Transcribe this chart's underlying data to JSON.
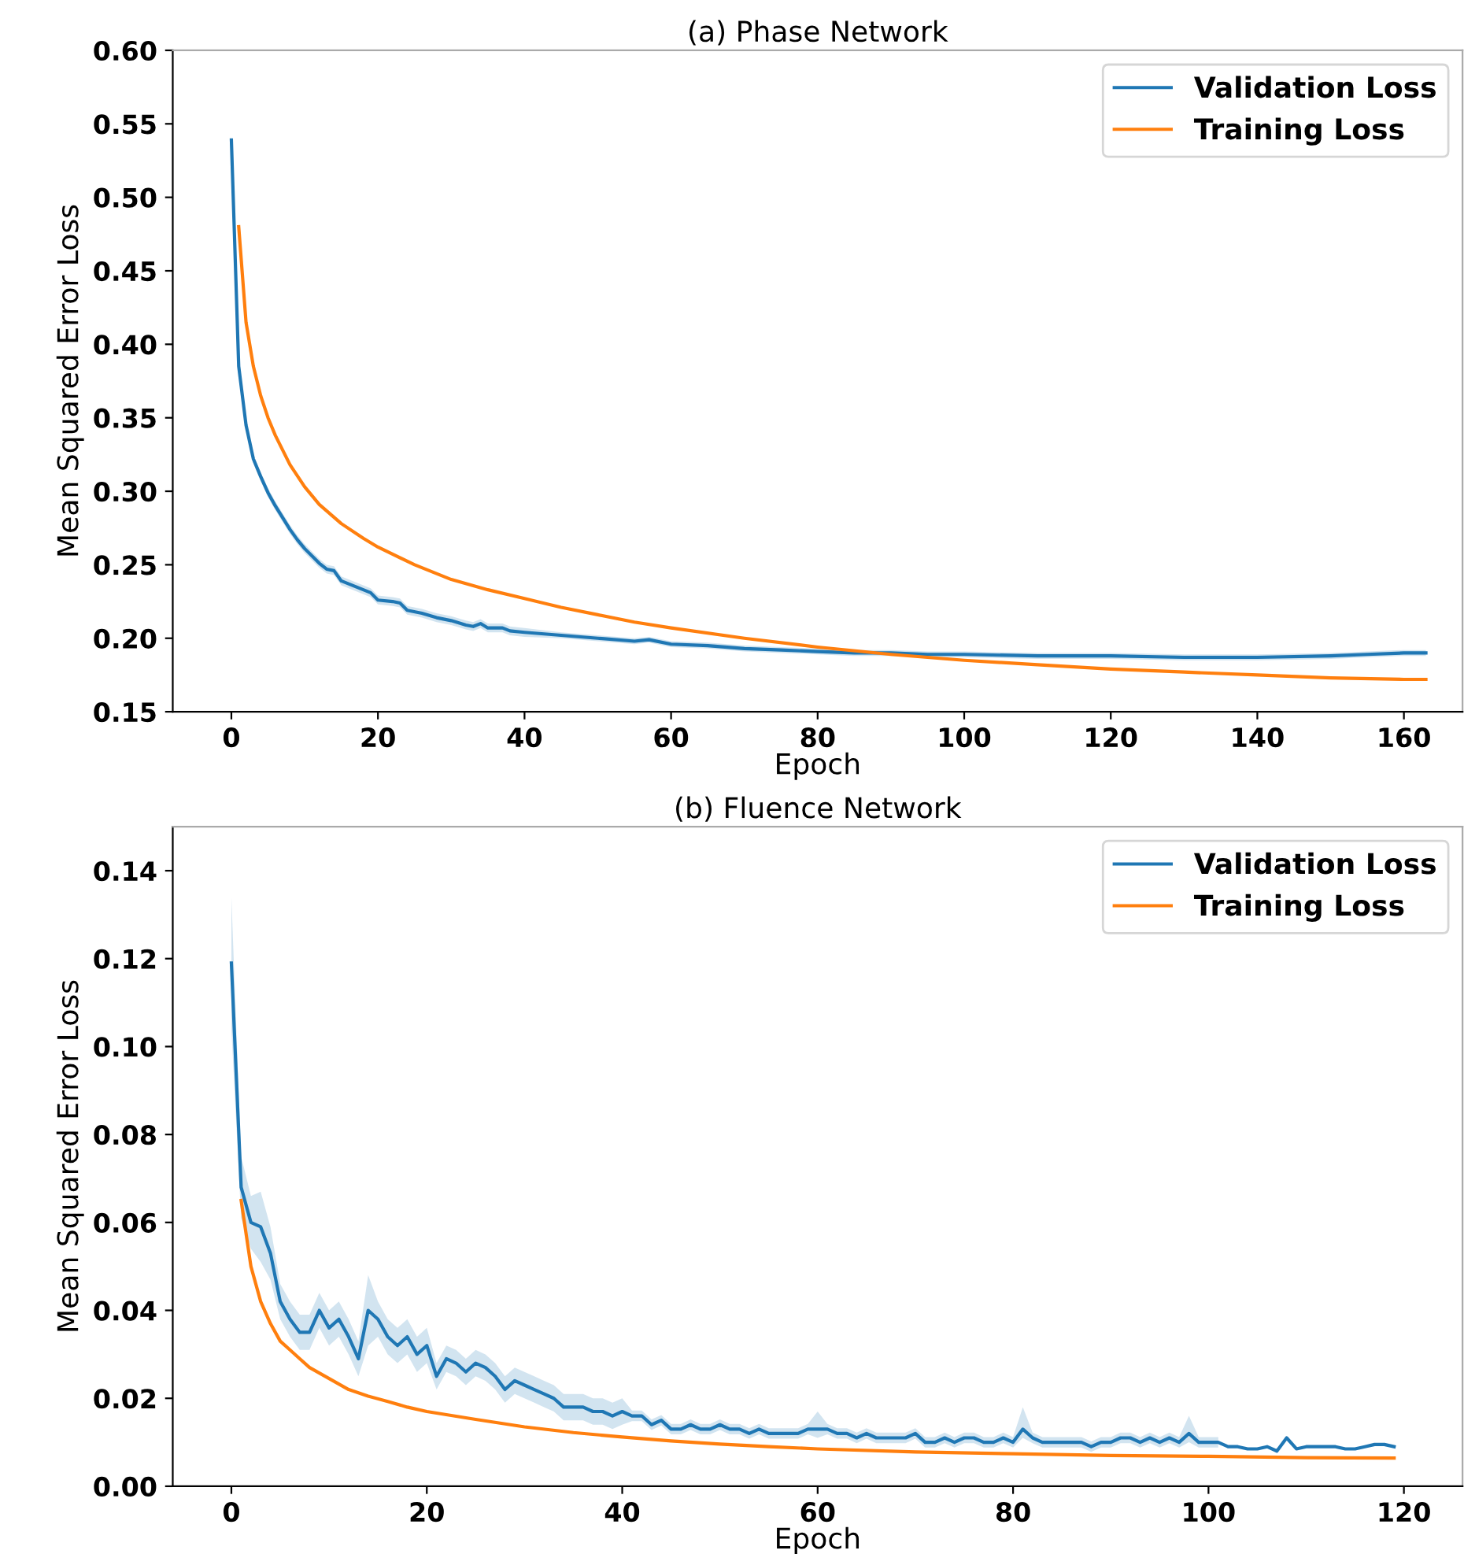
{
  "chart_data": [
    {
      "type": "line",
      "title": "(a) Phase Network",
      "xlabel": "Epoch",
      "ylabel": "Mean Squared Error Loss",
      "legend": "top right",
      "grid": false,
      "xlim": [
        -8,
        168
      ],
      "xticks": [
        0,
        20,
        40,
        60,
        80,
        100,
        120,
        140,
        160
      ],
      "ylim": [
        0.15,
        0.6
      ],
      "yticks": [
        {
          "value": 0.15,
          "label": "0.15"
        },
        {
          "value": 0.2,
          "label": "0.20"
        },
        {
          "value": 0.25,
          "label": "0.25"
        },
        {
          "value": 0.3,
          "label": "0.30"
        },
        {
          "value": 0.35,
          "label": "0.35"
        },
        {
          "value": 0.4,
          "label": "0.40"
        },
        {
          "value": 0.45,
          "label": "0.45"
        },
        {
          "value": 0.5,
          "label": "0.50"
        },
        {
          "value": 0.55,
          "label": "0.55"
        },
        {
          "value": 0.6,
          "label": "0.60"
        }
      ],
      "series": [
        {
          "name": "Validation Loss",
          "color": "#1f77b4",
          "x": [
            0,
            1,
            2,
            3,
            4,
            5,
            6,
            7,
            8,
            9,
            10,
            12,
            13,
            14,
            15,
            17,
            19,
            20,
            22,
            23,
            24,
            26,
            28,
            30,
            32,
            33,
            34,
            35,
            37,
            38,
            40,
            45,
            50,
            55,
            57,
            60,
            65,
            70,
            75,
            80,
            85,
            90,
            95,
            100,
            110,
            120,
            130,
            140,
            150,
            155,
            160,
            163
          ],
          "values": [
            0.539,
            0.385,
            0.345,
            0.322,
            0.31,
            0.299,
            0.29,
            0.282,
            0.274,
            0.267,
            0.261,
            0.251,
            0.247,
            0.246,
            0.239,
            0.235,
            0.231,
            0.226,
            0.225,
            0.224,
            0.219,
            0.217,
            0.214,
            0.212,
            0.209,
            0.208,
            0.21,
            0.207,
            0.207,
            0.205,
            0.204,
            0.202,
            0.2,
            0.198,
            0.199,
            0.196,
            0.195,
            0.193,
            0.192,
            0.191,
            0.19,
            0.19,
            0.189,
            0.189,
            0.188,
            0.188,
            0.187,
            0.187,
            0.188,
            0.189,
            0.19,
            0.19
          ],
          "lower": [
            0.536,
            0.382,
            0.342,
            0.319,
            0.307,
            0.296,
            0.287,
            0.279,
            0.271,
            0.264,
            0.258,
            0.248,
            0.244,
            0.243,
            0.236,
            0.232,
            0.228,
            0.223,
            0.222,
            0.221,
            0.216,
            0.214,
            0.211,
            0.209,
            0.206,
            0.205,
            0.207,
            0.204,
            0.204,
            0.202,
            0.201,
            0.2,
            0.198,
            0.196,
            0.197,
            0.194,
            0.193,
            0.191,
            0.19,
            0.189,
            0.188,
            0.188,
            0.187,
            0.187,
            0.186,
            0.186,
            0.185,
            0.185,
            0.186,
            0.187,
            0.188,
            0.188
          ],
          "upper": [
            0.542,
            0.388,
            0.348,
            0.325,
            0.313,
            0.302,
            0.293,
            0.285,
            0.277,
            0.27,
            0.264,
            0.254,
            0.25,
            0.249,
            0.242,
            0.238,
            0.234,
            0.229,
            0.228,
            0.227,
            0.222,
            0.22,
            0.217,
            0.215,
            0.212,
            0.211,
            0.213,
            0.21,
            0.21,
            0.208,
            0.207,
            0.204,
            0.202,
            0.2,
            0.201,
            0.198,
            0.197,
            0.195,
            0.194,
            0.193,
            0.192,
            0.192,
            0.191,
            0.191,
            0.19,
            0.19,
            0.189,
            0.189,
            0.19,
            0.191,
            0.192,
            0.192
          ]
        },
        {
          "name": "Training Loss",
          "color": "#ff7f0e",
          "x": [
            1,
            2,
            3,
            4,
            5,
            6,
            8,
            10,
            12,
            15,
            18,
            20,
            25,
            30,
            35,
            40,
            45,
            50,
            55,
            60,
            70,
            80,
            90,
            100,
            110,
            120,
            130,
            140,
            150,
            160,
            163
          ],
          "values": [
            0.48,
            0.415,
            0.385,
            0.365,
            0.35,
            0.338,
            0.318,
            0.303,
            0.291,
            0.278,
            0.268,
            0.262,
            0.25,
            0.24,
            0.233,
            0.227,
            0.221,
            0.216,
            0.211,
            0.207,
            0.2,
            0.194,
            0.189,
            0.185,
            0.182,
            0.179,
            0.177,
            0.175,
            0.173,
            0.172,
            0.172
          ]
        }
      ]
    },
    {
      "type": "line",
      "title": "(b) Fluence Network",
      "xlabel": "Epoch",
      "ylabel": "Mean Squared Error Loss",
      "legend": "top right",
      "grid": false,
      "xlim": [
        -6,
        126
      ],
      "xticks": [
        0,
        20,
        40,
        60,
        80,
        100,
        120
      ],
      "ylim": [
        0,
        0.15
      ],
      "yticks": [
        {
          "value": 0,
          "label": "0.00"
        },
        {
          "value": 0.02,
          "label": "0.02"
        },
        {
          "value": 0.04,
          "label": "0.04"
        },
        {
          "value": 0.06,
          "label": "0.06"
        },
        {
          "value": 0.08,
          "label": "0.08"
        },
        {
          "value": 0.1,
          "label": "0.10"
        },
        {
          "value": 0.12,
          "label": "0.12"
        },
        {
          "value": 0.14,
          "label": "0.14"
        }
      ],
      "series": [
        {
          "name": "Validation Loss",
          "color": "#1f77b4",
          "x": [
            0,
            1,
            2,
            3,
            4,
            5,
            6,
            7,
            8,
            9,
            10,
            11,
            12,
            13,
            14,
            15,
            16,
            17,
            18,
            19,
            20,
            21,
            22,
            23,
            24,
            25,
            26,
            27,
            28,
            29,
            30,
            31,
            32,
            33,
            34,
            35,
            36,
            37,
            38,
            39,
            40,
            41,
            42,
            43,
            44,
            45,
            46,
            47,
            48,
            49,
            50,
            51,
            52,
            53,
            54,
            55,
            56,
            57,
            58,
            59,
            60,
            61,
            62,
            63,
            64,
            65,
            66,
            67,
            68,
            69,
            70,
            71,
            72,
            73,
            74,
            75,
            76,
            77,
            78,
            79,
            80,
            81,
            82,
            83,
            84,
            85,
            86,
            87,
            88,
            89,
            90,
            91,
            92,
            93,
            94,
            95,
            96,
            97,
            98,
            99,
            100,
            101,
            102,
            103,
            104,
            105,
            106,
            107,
            108,
            109,
            110,
            111,
            112,
            113,
            114,
            115,
            116,
            117,
            118,
            119
          ],
          "values": [
            0.119,
            0.068,
            0.06,
            0.059,
            0.053,
            0.042,
            0.038,
            0.035,
            0.035,
            0.04,
            0.036,
            0.038,
            0.034,
            0.029,
            0.04,
            0.038,
            0.034,
            0.032,
            0.034,
            0.03,
            0.032,
            0.025,
            0.029,
            0.028,
            0.026,
            0.028,
            0.027,
            0.025,
            0.022,
            0.024,
            0.023,
            0.022,
            0.021,
            0.02,
            0.018,
            0.018,
            0.018,
            0.017,
            0.017,
            0.016,
            0.017,
            0.016,
            0.016,
            0.014,
            0.015,
            0.013,
            0.013,
            0.014,
            0.013,
            0.013,
            0.014,
            0.013,
            0.013,
            0.012,
            0.013,
            0.012,
            0.012,
            0.012,
            0.012,
            0.013,
            0.013,
            0.013,
            0.012,
            0.012,
            0.011,
            0.012,
            0.011,
            0.011,
            0.011,
            0.011,
            0.012,
            0.01,
            0.01,
            0.011,
            0.01,
            0.011,
            0.011,
            0.01,
            0.01,
            0.011,
            0.01,
            0.013,
            0.011,
            0.01,
            0.01,
            0.01,
            0.01,
            0.01,
            0.009,
            0.01,
            0.01,
            0.011,
            0.011,
            0.01,
            0.011,
            0.01,
            0.011,
            0.01,
            0.012,
            0.01,
            0.01,
            0.01,
            0.009,
            0.009,
            0.0085,
            0.0085,
            0.009,
            0.008,
            0.011,
            0.0085,
            0.009,
            0.009,
            0.009,
            0.009,
            0.0085,
            0.0085,
            0.009,
            0.0095,
            0.0095,
            0.009
          ],
          "lower": [
            0.104,
            0.061,
            0.054,
            0.051,
            0.047,
            0.038,
            0.034,
            0.031,
            0.031,
            0.036,
            0.032,
            0.034,
            0.03,
            0.025,
            0.032,
            0.034,
            0.03,
            0.028,
            0.03,
            0.026,
            0.028,
            0.022,
            0.026,
            0.025,
            0.023,
            0.025,
            0.024,
            0.022,
            0.019,
            0.021,
            0.02,
            0.019,
            0.018,
            0.017,
            0.015,
            0.015,
            0.015,
            0.014,
            0.014,
            0.013,
            0.014,
            0.0148,
            0.0148,
            0.0128,
            0.0138,
            0.0118,
            0.0118,
            0.0128,
            0.0118,
            0.0118,
            0.0128,
            0.0118,
            0.0118,
            0.0108,
            0.0118,
            0.0108,
            0.0108,
            0.0108,
            0.0108,
            0.0118,
            0.011,
            0.0118,
            0.0108,
            0.0108,
            0.0098,
            0.0108,
            0.0098,
            0.0098,
            0.0098,
            0.0098,
            0.0108,
            0.0088,
            0.0088,
            0.0098,
            0.0088,
            0.0098,
            0.0098,
            0.0088,
            0.0088,
            0.0098,
            0.0088,
            0.011,
            0.0098,
            0.0088,
            0.0088,
            0.0088,
            0.0088,
            0.0088,
            0.0078,
            0.0088,
            0.0088,
            0.0098,
            0.0098,
            0.0088,
            0.0098,
            0.0088,
            0.0098,
            0.0088,
            0.01,
            0.0088,
            0.0088,
            0.0088,
            null,
            null,
            null,
            null,
            null,
            null,
            null,
            null,
            null,
            null,
            null,
            null,
            null,
            null,
            null,
            null,
            null,
            null
          ],
          "upper": [
            0.134,
            0.075,
            0.066,
            0.067,
            0.059,
            0.046,
            0.042,
            0.039,
            0.039,
            0.044,
            0.04,
            0.042,
            0.038,
            0.033,
            0.048,
            0.042,
            0.038,
            0.036,
            0.038,
            0.034,
            0.036,
            0.028,
            0.032,
            0.031,
            0.029,
            0.031,
            0.03,
            0.028,
            0.025,
            0.027,
            0.026,
            0.025,
            0.024,
            0.023,
            0.021,
            0.021,
            0.021,
            0.02,
            0.02,
            0.019,
            0.02,
            0.0172,
            0.0172,
            0.0152,
            0.0162,
            0.0142,
            0.0142,
            0.0152,
            0.0142,
            0.0142,
            0.0152,
            0.0142,
            0.0142,
            0.0132,
            0.0142,
            0.0132,
            0.0132,
            0.0132,
            0.0132,
            0.0142,
            0.017,
            0.0142,
            0.0132,
            0.0132,
            0.0122,
            0.0132,
            0.0122,
            0.0122,
            0.0122,
            0.0122,
            0.0132,
            0.0112,
            0.0112,
            0.0122,
            0.0112,
            0.0122,
            0.0122,
            0.0112,
            0.0112,
            0.0122,
            0.0112,
            0.018,
            0.0122,
            0.0112,
            0.0112,
            0.0112,
            0.0112,
            0.0112,
            0.0102,
            0.0112,
            0.0112,
            0.0122,
            0.0122,
            0.0112,
            0.0122,
            0.0112,
            0.0122,
            0.0112,
            0.016,
            0.0112,
            0.0112,
            0.0112,
            null,
            null,
            null,
            null,
            null,
            null,
            null,
            null,
            null,
            null,
            null,
            null,
            null,
            null,
            null,
            null,
            null,
            null
          ]
        },
        {
          "name": "Training Loss",
          "color": "#ff7f0e",
          "x": [
            1,
            2,
            3,
            4,
            5,
            6,
            7,
            8,
            10,
            12,
            14,
            16,
            18,
            20,
            25,
            30,
            35,
            40,
            45,
            50,
            55,
            60,
            70,
            80,
            90,
            100,
            110,
            119
          ],
          "values": [
            0.065,
            0.05,
            0.042,
            0.037,
            0.033,
            0.031,
            0.029,
            0.027,
            0.0245,
            0.022,
            0.0205,
            0.0193,
            0.018,
            0.017,
            0.0152,
            0.0135,
            0.0122,
            0.0112,
            0.0103,
            0.0096,
            0.009,
            0.0085,
            0.0078,
            0.0074,
            0.007,
            0.0068,
            0.0065,
            0.0064
          ]
        }
      ]
    }
  ]
}
